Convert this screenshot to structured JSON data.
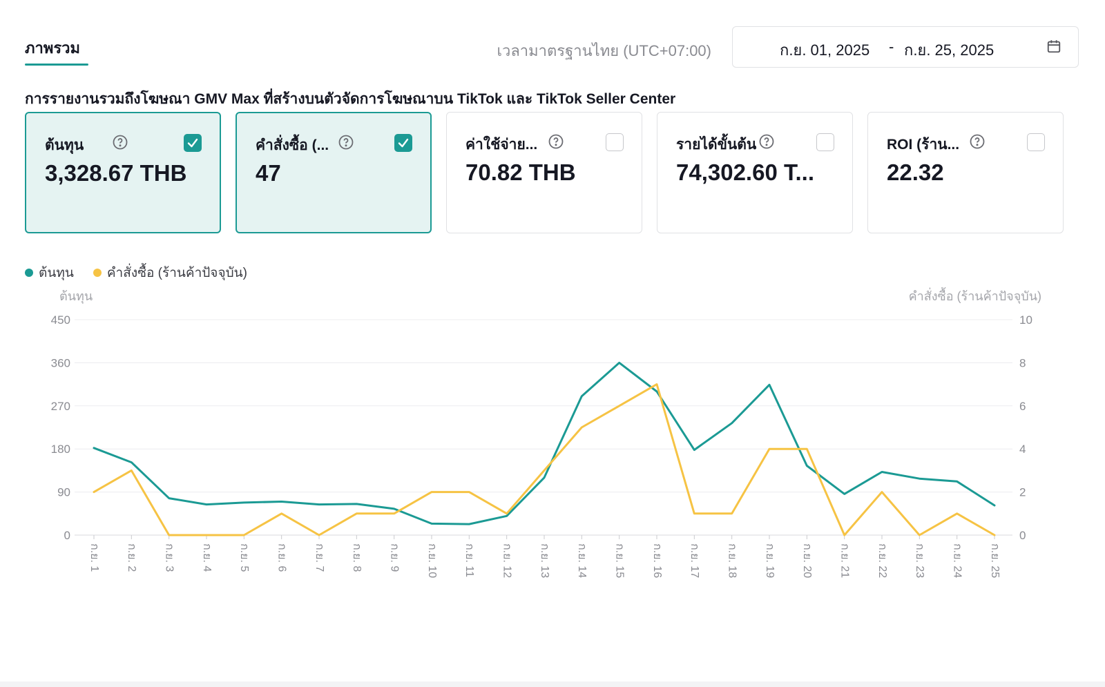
{
  "header": {
    "tab_label": "ภาพรวม",
    "timezone": "เวลามาตรฐานไทย (UTC+07:00)",
    "date_start": "ก.ย. 01, 2025",
    "date_sep": "-",
    "date_end": "ก.ย. 25, 2025"
  },
  "subtitle": "การรายงานรวมถึงโฆษณา GMV Max ที่สร้างบนตัวจัดการโฆษณาบน TikTok และ TikTok Seller Center",
  "cards": [
    {
      "label": "ต้นทุน",
      "value": "3,328.67 THB",
      "checked": true
    },
    {
      "label": "คำสั่งซื้อ (...",
      "value": "47",
      "checked": true
    },
    {
      "label": "ค่าใช้จ่าย...",
      "value": "70.82 THB",
      "checked": false
    },
    {
      "label": "รายได้ขั้นต้น",
      "value": "74,302.60 T...",
      "checked": false
    },
    {
      "label": "ROI (ร้าน...",
      "value": "22.32",
      "checked": false
    }
  ],
  "legend": {
    "series1": "ต้นทุน",
    "series2": "คำสั่งซื้อ (ร้านค้าปัจจุบัน)"
  },
  "axis_titles": {
    "left": "ต้นทุน",
    "right": "คำสั่งซื้อ (ร้านค้าปัจจุบัน)"
  },
  "colors": {
    "accent": "#1b9a94",
    "series1": "#1b9a94",
    "series2": "#f6c344"
  },
  "chart_data": {
    "type": "line",
    "categories": [
      "ก.ย. 1",
      "ก.ย. 2",
      "ก.ย. 3",
      "ก.ย. 4",
      "ก.ย. 5",
      "ก.ย. 6",
      "ก.ย. 7",
      "ก.ย. 8",
      "ก.ย. 9",
      "ก.ย. 10",
      "ก.ย. 11",
      "ก.ย. 12",
      "ก.ย. 13",
      "ก.ย. 14",
      "ก.ย. 15",
      "ก.ย. 16",
      "ก.ย. 17",
      "ก.ย. 18",
      "ก.ย. 19",
      "ก.ย. 20",
      "ก.ย. 21",
      "ก.ย. 22",
      "ก.ย. 23",
      "ก.ย. 24",
      "ก.ย. 25"
    ],
    "series": [
      {
        "name": "ต้นทุน",
        "axis": "left",
        "values": [
          182,
          152,
          77,
          64,
          68,
          70,
          64,
          65,
          55,
          24,
          23,
          40,
          120,
          290,
          360,
          300,
          178,
          234,
          314,
          145,
          86,
          132,
          118,
          112,
          62
        ]
      },
      {
        "name": "คำสั่งซื้อ (ร้านค้าปัจจุบัน)",
        "axis": "right",
        "values": [
          2,
          3,
          0,
          0,
          0,
          1,
          0,
          1,
          1,
          2,
          2,
          1,
          3,
          5,
          6,
          7,
          1,
          1,
          4,
          4,
          0,
          2,
          0,
          1,
          0
        ]
      }
    ],
    "y_left": {
      "title": "ต้นทุน",
      "ticks": [
        0,
        90,
        180,
        270,
        360,
        450
      ],
      "range": [
        0,
        450
      ]
    },
    "y_right": {
      "title": "คำสั่งซื้อ (ร้านค้าปัจจุบัน)",
      "ticks": [
        0,
        2,
        4,
        6,
        8,
        10
      ],
      "range": [
        0,
        10
      ]
    },
    "grid": true,
    "legend_position": "top-left"
  }
}
